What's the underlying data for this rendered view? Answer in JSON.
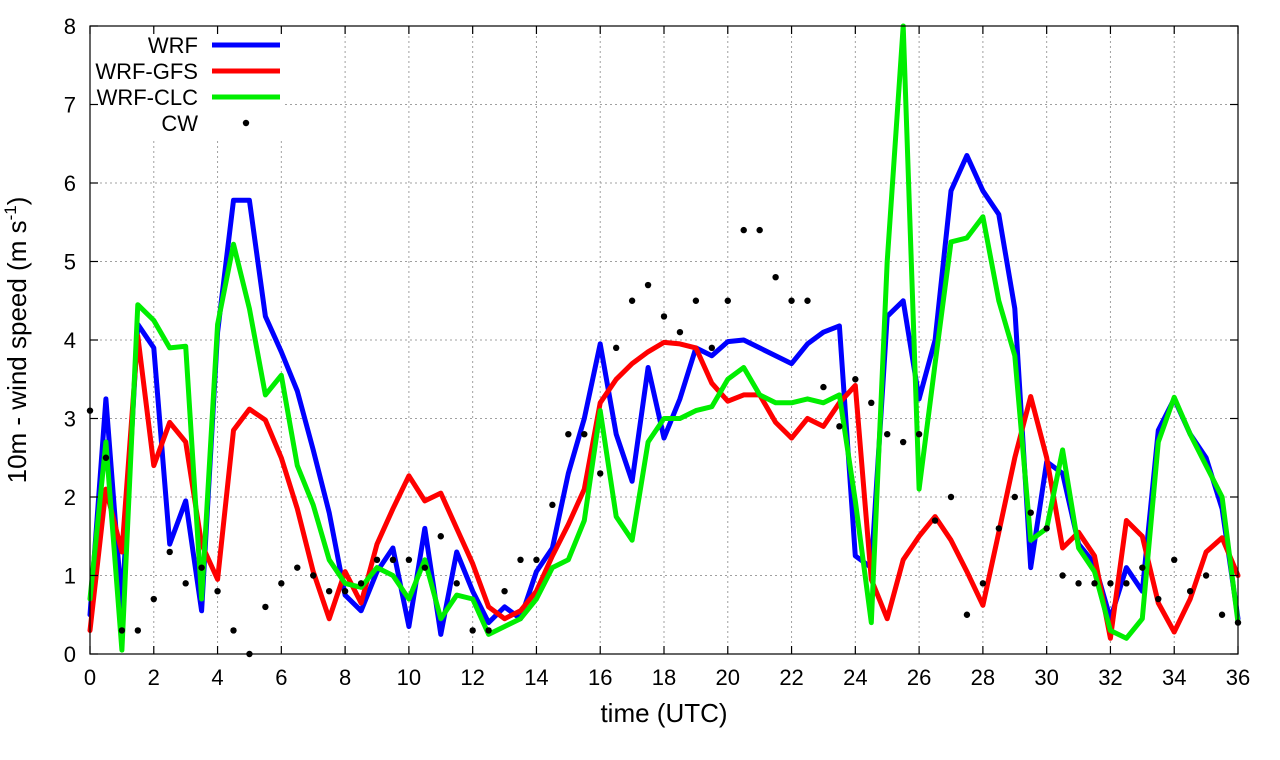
{
  "chart_data": {
    "type": "line",
    "xlabel": "time (UTC)",
    "ylabel_main": "10m - wind speed  (m s",
    "ylabel_sup": "-1",
    "ylabel_end": ")",
    "xlim": [
      0,
      36
    ],
    "ylim": [
      0,
      8
    ],
    "xticks": [
      0,
      2,
      4,
      6,
      8,
      10,
      12,
      14,
      16,
      18,
      20,
      22,
      24,
      26,
      28,
      30,
      32,
      34,
      36
    ],
    "yticks": [
      0,
      1,
      2,
      3,
      4,
      5,
      6,
      7,
      8
    ],
    "grid": true,
    "legend_position": "top-left",
    "series": [
      {
        "name": "WRF",
        "color": "#0000ff",
        "style": "line",
        "x": [
          0,
          0.5,
          1,
          1.5,
          2,
          2.5,
          3,
          3.5,
          4,
          4.5,
          5,
          5.5,
          6,
          6.5,
          7,
          7.5,
          8,
          8.5,
          9,
          9.5,
          10,
          10.5,
          11,
          11.5,
          12,
          12.5,
          13,
          13.5,
          14,
          14.5,
          15,
          15.5,
          16,
          16.5,
          17,
          17.5,
          18,
          18.5,
          19,
          19.5,
          20,
          20.5,
          21,
          21.5,
          22,
          22.5,
          23,
          23.5,
          24,
          24.5,
          25,
          25.5,
          26,
          26.5,
          27,
          27.5,
          28,
          28.5,
          29,
          29.5,
          30,
          30.5,
          31,
          31.5,
          32,
          32.5,
          33,
          33.5,
          34,
          34.5,
          35,
          35.5,
          36
        ],
        "y": [
          0.5,
          3.25,
          0.6,
          4.2,
          3.9,
          1.4,
          1.95,
          0.55,
          4.1,
          5.78,
          5.78,
          4.3,
          3.85,
          3.35,
          2.6,
          1.8,
          0.75,
          0.55,
          1.05,
          1.35,
          0.35,
          1.6,
          0.25,
          1.3,
          0.8,
          0.4,
          0.6,
          0.45,
          1.05,
          1.35,
          2.3,
          3.0,
          3.95,
          2.8,
          2.2,
          3.65,
          2.75,
          3.25,
          3.9,
          3.8,
          3.98,
          4.0,
          3.9,
          3.8,
          3.7,
          3.95,
          4.1,
          4.18,
          1.25,
          1.1,
          4.3,
          4.5,
          3.25,
          4.0,
          5.9,
          6.35,
          5.9,
          5.6,
          4.4,
          1.1,
          2.45,
          2.3,
          1.4,
          1.15,
          0.45,
          1.1,
          0.8,
          2.85,
          3.25,
          2.8,
          2.5,
          1.85,
          0.45
        ]
      },
      {
        "name": "WRF-GFS",
        "color": "#ff0000",
        "style": "line",
        "x": [
          0,
          0.5,
          1,
          1.5,
          2,
          2.5,
          3,
          3.5,
          4,
          4.5,
          5,
          5.5,
          6,
          6.5,
          7,
          7.5,
          8,
          8.5,
          9,
          9.5,
          10,
          10.5,
          11,
          11.5,
          12,
          12.5,
          13,
          13.5,
          14,
          14.5,
          15,
          15.5,
          16,
          16.5,
          17,
          17.5,
          18,
          18.5,
          19,
          19.5,
          20,
          20.5,
          21,
          21.5,
          22,
          22.5,
          23,
          23.5,
          24,
          24.5,
          25,
          25.5,
          26,
          26.5,
          27,
          27.5,
          28,
          28.5,
          29,
          29.5,
          30,
          30.5,
          31,
          31.5,
          32,
          32.5,
          33,
          33.5,
          34,
          34.5,
          35,
          35.5,
          36
        ],
        "y": [
          0.3,
          2.1,
          1.3,
          4.05,
          2.4,
          2.95,
          2.7,
          1.4,
          0.95,
          2.85,
          3.12,
          2.98,
          2.5,
          1.85,
          1.05,
          0.45,
          1.05,
          0.65,
          1.4,
          1.85,
          2.27,
          1.95,
          2.05,
          1.6,
          1.15,
          0.6,
          0.45,
          0.55,
          0.8,
          1.25,
          1.65,
          2.1,
          3.2,
          3.5,
          3.7,
          3.85,
          3.97,
          3.95,
          3.9,
          3.45,
          3.22,
          3.3,
          3.3,
          2.95,
          2.75,
          3.0,
          2.9,
          3.2,
          3.42,
          0.95,
          0.45,
          1.2,
          1.5,
          1.75,
          1.45,
          1.05,
          0.62,
          1.55,
          2.5,
          3.28,
          2.5,
          1.35,
          1.55,
          1.25,
          0.2,
          1.7,
          1.5,
          0.65,
          0.28,
          0.7,
          1.3,
          1.48,
          1.0
        ]
      },
      {
        "name": "WRF-CLC",
        "color": "#00ee00",
        "style": "line",
        "x": [
          0,
          0.5,
          1,
          1.5,
          2,
          2.5,
          3,
          3.5,
          4,
          4.5,
          5,
          5.5,
          6,
          6.5,
          7,
          7.5,
          8,
          8.5,
          9,
          9.5,
          10,
          10.5,
          11,
          11.5,
          12,
          12.5,
          13,
          13.5,
          14,
          14.5,
          15,
          15.5,
          16,
          16.5,
          17,
          17.5,
          18,
          18.5,
          19,
          19.5,
          20,
          20.5,
          21,
          21.5,
          22,
          22.5,
          23,
          23.5,
          24,
          24.5,
          25,
          25.5,
          26,
          26.5,
          27,
          27.5,
          28,
          28.5,
          29,
          29.5,
          30,
          30.5,
          31,
          31.5,
          32,
          32.5,
          33,
          33.5,
          34,
          34.5,
          35,
          35.5,
          36
        ],
        "y": [
          0.7,
          2.7,
          0.05,
          4.45,
          4.25,
          3.9,
          3.92,
          0.7,
          4.2,
          5.22,
          4.4,
          3.3,
          3.55,
          2.4,
          1.9,
          1.2,
          0.9,
          0.85,
          1.1,
          1.0,
          0.7,
          1.2,
          0.45,
          0.75,
          0.7,
          0.25,
          0.35,
          0.45,
          0.7,
          1.1,
          1.2,
          1.7,
          3.1,
          1.75,
          1.45,
          2.7,
          3.0,
          3.0,
          3.1,
          3.15,
          3.5,
          3.65,
          3.3,
          3.2,
          3.2,
          3.25,
          3.2,
          3.3,
          1.95,
          0.4,
          5.0,
          8.0,
          2.1,
          3.7,
          5.25,
          5.3,
          5.57,
          4.5,
          3.8,
          1.45,
          1.6,
          2.6,
          1.35,
          1.05,
          0.3,
          0.2,
          0.45,
          2.7,
          3.27,
          2.8,
          2.4,
          2.0,
          0.4
        ]
      },
      {
        "name": "CW",
        "color": "#000000",
        "style": "points",
        "x": [
          0,
          0.5,
          1,
          1.5,
          2,
          2.5,
          3,
          3.5,
          4,
          4.5,
          5,
          5.5,
          6,
          6.5,
          7,
          7.5,
          8,
          8.5,
          9,
          9.5,
          10,
          10.5,
          11,
          11.5,
          12,
          12.5,
          13,
          13.5,
          14,
          14.5,
          15,
          15.5,
          16,
          16.5,
          17,
          17.5,
          18,
          18.5,
          19,
          19.5,
          20,
          20.5,
          21,
          21.5,
          22,
          22.5,
          23,
          23.5,
          24,
          24.5,
          25,
          25.5,
          26,
          26.5,
          27,
          27.5,
          28,
          28.5,
          29,
          29.5,
          30,
          30.5,
          31,
          31.5,
          32,
          32.5,
          33,
          33.5,
          34,
          34.5,
          35,
          35.5,
          36
        ],
        "y": [
          3.1,
          2.5,
          0.3,
          0.3,
          0.7,
          1.3,
          0.9,
          1.1,
          0.8,
          0.3,
          0.0,
          0.6,
          0.9,
          1.1,
          1.0,
          0.8,
          0.8,
          0.9,
          1.2,
          1.2,
          1.2,
          1.1,
          1.5,
          0.9,
          0.3,
          0.3,
          0.8,
          1.2,
          1.2,
          1.9,
          2.8,
          2.8,
          2.3,
          3.9,
          4.5,
          4.7,
          4.3,
          4.1,
          4.5,
          3.9,
          4.5,
          5.4,
          5.4,
          4.8,
          4.5,
          4.5,
          3.4,
          2.9,
          3.5,
          3.2,
          2.8,
          2.7,
          2.8,
          1.7,
          2.0,
          0.5,
          0.9,
          1.6,
          2.0,
          1.8,
          1.6,
          1.0,
          0.9,
          0.9,
          0.9,
          0.9,
          1.1,
          0.7,
          1.2,
          0.8,
          1.0,
          0.5,
          0.4
        ]
      }
    ]
  }
}
